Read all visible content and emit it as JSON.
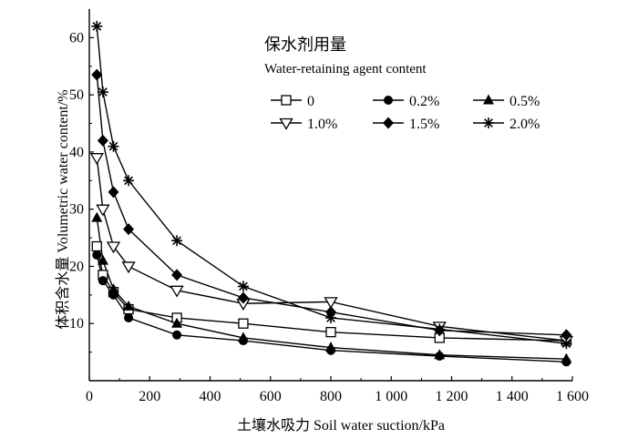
{
  "chart_data": {
    "type": "line",
    "title": "",
    "xlabel": "土壤水吸力 Soil water suction/kPa",
    "ylabel": "体积含水量 Volumetric water content/%",
    "xlim": [
      0,
      1600
    ],
    "ylim": [
      0,
      65
    ],
    "x_ticks": [
      0,
      200,
      400,
      600,
      800,
      1000,
      1200,
      1400,
      1600
    ],
    "x_tick_labels": [
      "0",
      "200",
      "400",
      "600",
      "800",
      "1 000",
      "1 200",
      "1 400",
      "1 600"
    ],
    "y_ticks": [
      10,
      20,
      30,
      40,
      50,
      60
    ],
    "y_tick_labels": [
      "10",
      "20",
      "30",
      "40",
      "50",
      "60"
    ],
    "grid": false,
    "legend": {
      "title": "保水剂用量",
      "subtitle": "Water-retaining agent content",
      "placement": "top-right"
    },
    "series": [
      {
        "name": "0",
        "marker": "square-open",
        "x": [
          25,
          45,
          80,
          130,
          290,
          510,
          800,
          1160,
          1580
        ],
        "y": [
          23.5,
          18.5,
          15.5,
          12.5,
          11.0,
          10.0,
          8.5,
          7.5,
          7.0
        ]
      },
      {
        "name": "0.2%",
        "marker": "circle-filled",
        "x": [
          25,
          45,
          80,
          130,
          290,
          510,
          800,
          1160,
          1580
        ],
        "y": [
          22.0,
          17.5,
          15.0,
          11.0,
          8.0,
          7.0,
          5.3,
          4.3,
          3.3
        ]
      },
      {
        "name": "0.5%",
        "marker": "triangle-up-filled",
        "x": [
          25,
          45,
          80,
          130,
          290,
          510,
          800,
          1160,
          1580
        ],
        "y": [
          28.5,
          21.0,
          16.0,
          13.0,
          10.0,
          7.5,
          5.8,
          4.5,
          3.8
        ]
      },
      {
        "name": "1.0%",
        "marker": "triangle-down-open",
        "x": [
          25,
          45,
          80,
          130,
          290,
          510,
          800,
          1160,
          1580
        ],
        "y": [
          39.0,
          30.0,
          23.5,
          20.0,
          15.8,
          13.5,
          13.8,
          9.5,
          7.0
        ]
      },
      {
        "name": "1.5%",
        "marker": "diamond-filled",
        "x": [
          25,
          45,
          80,
          130,
          290,
          510,
          800,
          1160,
          1580
        ],
        "y": [
          53.5,
          42.0,
          33.0,
          26.5,
          18.5,
          14.5,
          12.0,
          8.8,
          8.0
        ]
      },
      {
        "name": "2.0%",
        "marker": "asterisk",
        "x": [
          25,
          45,
          80,
          130,
          290,
          510,
          800,
          1160,
          1580
        ],
        "y": [
          62.0,
          50.5,
          41.0,
          35.0,
          24.5,
          16.5,
          11.0,
          9.0,
          6.5
        ]
      }
    ]
  }
}
